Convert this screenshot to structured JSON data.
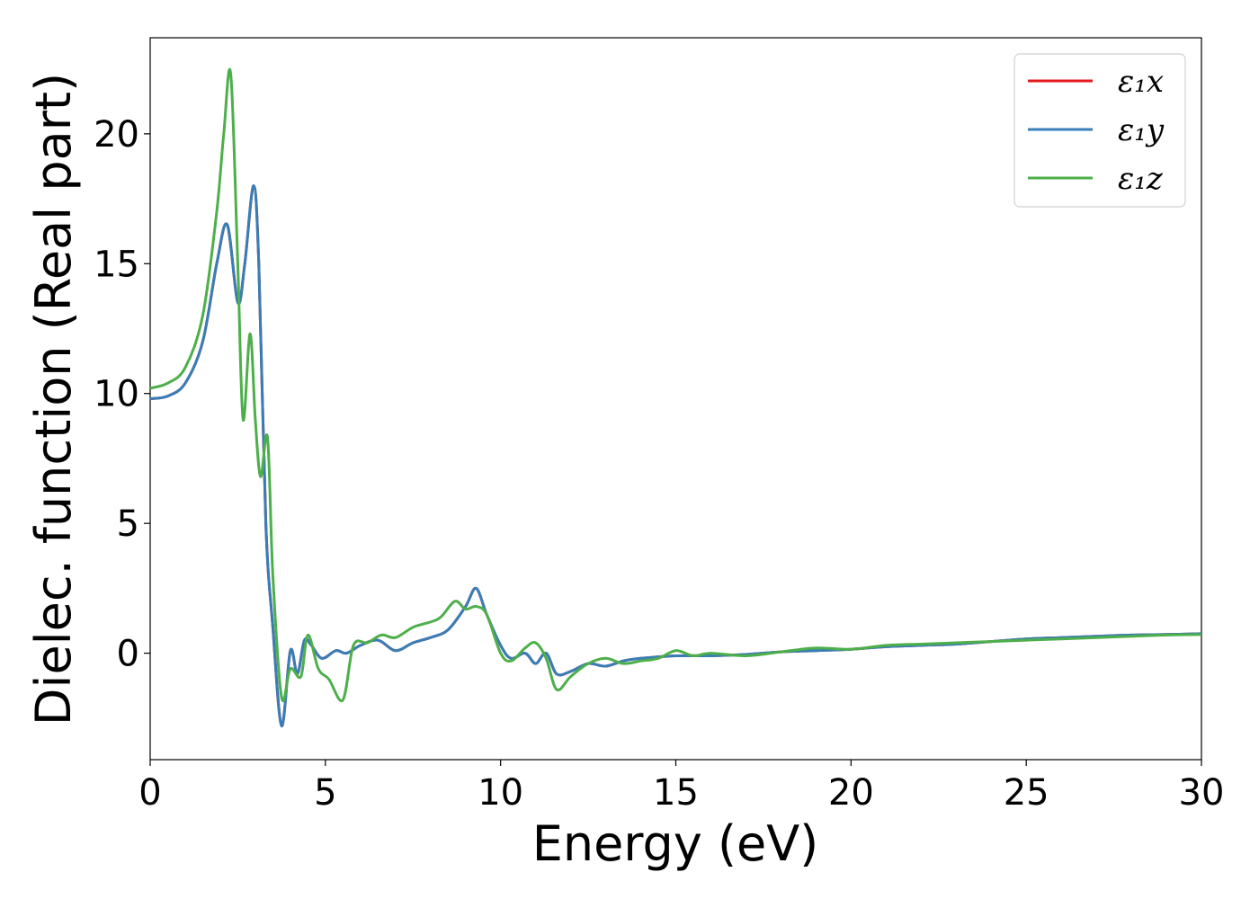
{
  "chart_data": {
    "type": "line",
    "xlabel": "Energy (eV)",
    "ylabel": "Dielec. function (Real part)",
    "xlim": [
      0,
      30
    ],
    "ylim": [
      -4.1,
      23.7
    ],
    "xticks": [
      0,
      5,
      10,
      15,
      20,
      25,
      30
    ],
    "yticks": [
      0,
      5,
      10,
      15,
      20
    ],
    "grid": false,
    "legend_position": "top-right",
    "series": [
      {
        "name": "ε₁x",
        "color": "#e41a1c",
        "x": [
          0,
          0.5,
          1,
          1.5,
          1.9,
          2.2,
          2.5,
          2.7,
          2.95,
          3.1,
          3.3,
          3.5,
          3.75,
          4.0,
          4.2,
          4.4,
          4.6,
          4.9,
          5.3,
          5.6,
          6.0,
          6.5,
          7.0,
          7.5,
          8.0,
          8.5,
          9.0,
          9.3,
          9.6,
          10.0,
          10.3,
          10.7,
          11.0,
          11.3,
          11.6,
          12.0,
          12.5,
          13.0,
          13.5,
          14.0,
          15.0,
          16.0,
          17.0,
          18.0,
          19.0,
          20.0,
          21.0,
          22.0,
          23.0,
          24.0,
          25.0,
          26.0,
          27.0,
          28.0,
          29.0,
          30.0
        ],
        "y": [
          9.8,
          9.9,
          10.4,
          12.0,
          15.0,
          16.5,
          13.5,
          15.0,
          18.0,
          15.0,
          5.0,
          1.0,
          -2.8,
          0.1,
          -0.8,
          0.5,
          0.3,
          -0.2,
          0.1,
          0.0,
          0.3,
          0.5,
          0.1,
          0.4,
          0.6,
          0.9,
          1.8,
          2.5,
          1.5,
          0.3,
          -0.2,
          0.0,
          -0.4,
          0.0,
          -0.8,
          -0.7,
          -0.4,
          -0.5,
          -0.3,
          -0.2,
          -0.1,
          -0.1,
          -0.05,
          0.05,
          0.1,
          0.15,
          0.25,
          0.3,
          0.35,
          0.45,
          0.55,
          0.6,
          0.65,
          0.7,
          0.72,
          0.75
        ]
      },
      {
        "name": "ε₁y",
        "color": "#377eb8",
        "x": [
          0,
          0.5,
          1,
          1.5,
          1.9,
          2.2,
          2.5,
          2.7,
          2.95,
          3.1,
          3.3,
          3.5,
          3.75,
          4.0,
          4.2,
          4.4,
          4.6,
          4.9,
          5.3,
          5.6,
          6.0,
          6.5,
          7.0,
          7.5,
          8.0,
          8.5,
          9.0,
          9.3,
          9.6,
          10.0,
          10.3,
          10.7,
          11.0,
          11.3,
          11.6,
          12.0,
          12.5,
          13.0,
          13.5,
          14.0,
          15.0,
          16.0,
          17.0,
          18.0,
          19.0,
          20.0,
          21.0,
          22.0,
          23.0,
          24.0,
          25.0,
          26.0,
          27.0,
          28.0,
          29.0,
          30.0
        ],
        "y": [
          9.8,
          9.9,
          10.4,
          12.0,
          15.0,
          16.5,
          13.5,
          15.0,
          18.0,
          15.0,
          5.0,
          1.0,
          -2.8,
          0.1,
          -0.8,
          0.5,
          0.3,
          -0.2,
          0.1,
          0.0,
          0.3,
          0.5,
          0.1,
          0.4,
          0.6,
          0.9,
          1.8,
          2.5,
          1.5,
          0.3,
          -0.2,
          0.0,
          -0.4,
          0.0,
          -0.8,
          -0.7,
          -0.4,
          -0.5,
          -0.3,
          -0.2,
          -0.1,
          -0.1,
          -0.05,
          0.05,
          0.1,
          0.15,
          0.25,
          0.3,
          0.35,
          0.45,
          0.55,
          0.6,
          0.65,
          0.7,
          0.72,
          0.75
        ]
      },
      {
        "name": "ε₁z",
        "color": "#4daf4a",
        "x": [
          0,
          0.5,
          1,
          1.5,
          1.9,
          2.1,
          2.3,
          2.5,
          2.65,
          2.85,
          3.0,
          3.15,
          3.35,
          3.5,
          3.75,
          4.0,
          4.3,
          4.5,
          4.8,
          5.1,
          5.5,
          5.8,
          6.2,
          6.6,
          7.0,
          7.5,
          8.0,
          8.3,
          8.7,
          9.0,
          9.3,
          9.6,
          10.0,
          10.3,
          10.7,
          11.0,
          11.3,
          11.6,
          12.0,
          12.5,
          13.0,
          13.5,
          14.0,
          14.5,
          15.0,
          15.5,
          16.0,
          17.0,
          18.0,
          19.0,
          20.0,
          21.0,
          22.0,
          23.0,
          24.0,
          25.0,
          26.0,
          27.0,
          28.0,
          29.0,
          30.0
        ],
        "y": [
          10.2,
          10.4,
          11.0,
          13.0,
          17.0,
          20.0,
          22.3,
          15.0,
          9.0,
          12.3,
          9.0,
          6.8,
          8.3,
          3.0,
          -1.7,
          -0.6,
          -0.9,
          0.7,
          -0.6,
          -1.0,
          -1.8,
          0.3,
          0.4,
          0.7,
          0.6,
          1.0,
          1.2,
          1.4,
          2.0,
          1.7,
          1.8,
          1.5,
          0.0,
          -0.3,
          0.2,
          0.4,
          -0.2,
          -1.4,
          -0.9,
          -0.4,
          -0.2,
          -0.4,
          -0.3,
          -0.2,
          0.1,
          -0.1,
          0.0,
          -0.1,
          0.05,
          0.2,
          0.15,
          0.3,
          0.35,
          0.4,
          0.45,
          0.5,
          0.55,
          0.6,
          0.65,
          0.7,
          0.72
        ]
      }
    ]
  }
}
